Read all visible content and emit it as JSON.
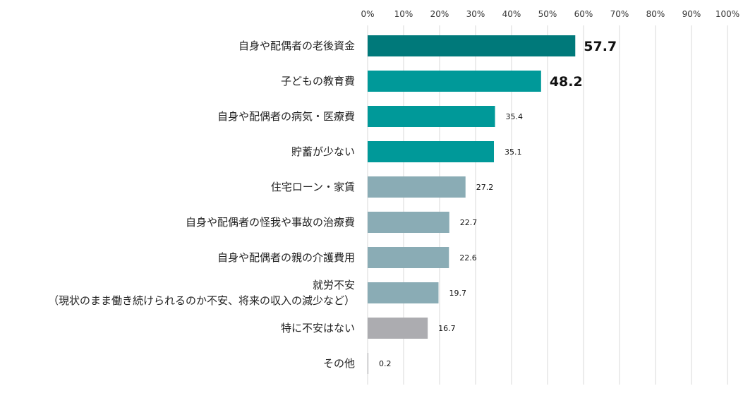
{
  "chart_data": {
    "type": "bar",
    "orientation": "horizontal",
    "x_ticks": [
      "0%",
      "10%",
      "20%",
      "30%",
      "40%",
      "50%",
      "60%",
      "70%",
      "80%",
      "90%",
      "100%"
    ],
    "xlim": [
      0,
      100
    ],
    "grid": true,
    "categories": [
      [
        "自身や配偶者の老後資金"
      ],
      [
        "子どもの教育費"
      ],
      [
        "自身や配偶者の病気・医療費"
      ],
      [
        "貯蓄が少ない"
      ],
      [
        "住宅ローン・家賃"
      ],
      [
        "自身や配偶者の怪我や事故の治療費"
      ],
      [
        "自身や配偶者の親の介護費用"
      ],
      [
        "就労不安",
        "（現状のまま働き続けられるのか不安、将来の収入の減少など）"
      ],
      [
        "特に不安はない"
      ],
      [
        "その他"
      ]
    ],
    "values": [
      57.7,
      48.2,
      35.4,
      35.1,
      27.2,
      22.7,
      22.6,
      19.7,
      16.7,
      0.2
    ],
    "value_labels": [
      "57.7",
      "48.2",
      "35.4",
      "35.1",
      "27.2",
      "22.7",
      "22.6",
      "19.7",
      "16.7",
      "0.2"
    ],
    "emphasized_labels": [
      true,
      true,
      false,
      false,
      false,
      false,
      false,
      false,
      false,
      false
    ],
    "bar_colors": [
      "#00797a",
      "#009999",
      "#009999",
      "#009999",
      "#8aacb5",
      "#8aacb5",
      "#8aacb5",
      "#8aacb5",
      "#acacb0",
      "#acacb0"
    ]
  }
}
